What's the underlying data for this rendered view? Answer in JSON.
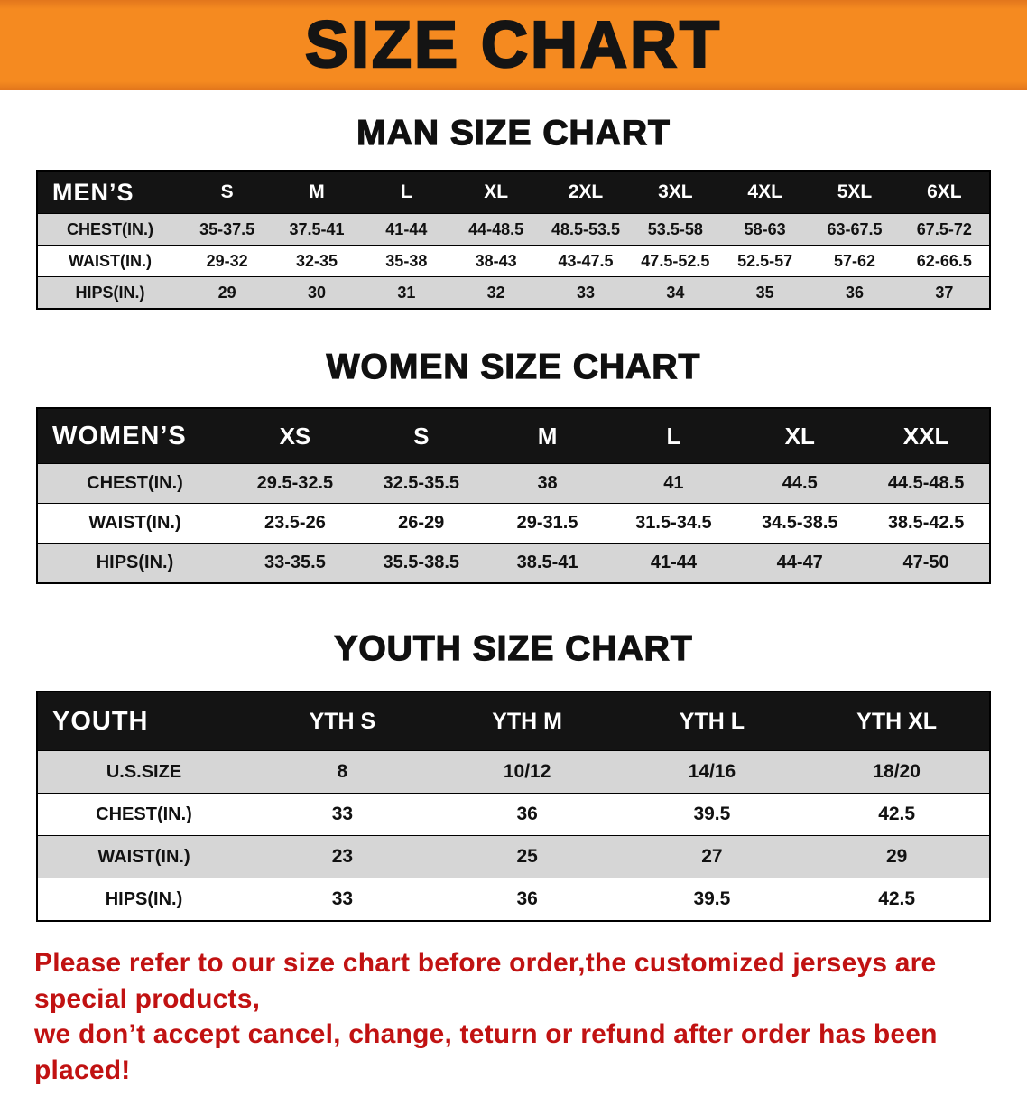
{
  "banner": {
    "title": "SIZE CHART",
    "background_color": "#f58a20",
    "title_color": "#141414"
  },
  "sections": [
    {
      "heading": "MAN SIZE CHART",
      "table": {
        "header": [
          "MEN’S",
          "S",
          "M",
          "L",
          "XL",
          "2XL",
          "3XL",
          "4XL",
          "5XL",
          "6XL"
        ],
        "rows": [
          [
            "CHEST(IN.)",
            "35-37.5",
            "37.5-41",
            "41-44",
            "44-48.5",
            "48.5-53.5",
            "53.5-58",
            "58-63",
            "63-67.5",
            "67.5-72"
          ],
          [
            "WAIST(IN.)",
            "29-32",
            "32-35",
            "35-38",
            "38-43",
            "43-47.5",
            "47.5-52.5",
            "52.5-57",
            "57-62",
            "62-66.5"
          ],
          [
            "HIPS(IN.)",
            "29",
            "30",
            "31",
            "32",
            "33",
            "34",
            "35",
            "36",
            "37"
          ]
        ]
      }
    },
    {
      "heading": "WOMEN SIZE CHART",
      "table": {
        "header": [
          "WOMEN’S",
          "XS",
          "S",
          "M",
          "L",
          "XL",
          "XXL"
        ],
        "rows": [
          [
            "CHEST(IN.)",
            "29.5-32.5",
            "32.5-35.5",
            "38",
            "41",
            "44.5",
            "44.5-48.5"
          ],
          [
            "WAIST(IN.)",
            "23.5-26",
            "26-29",
            "29-31.5",
            "31.5-34.5",
            "34.5-38.5",
            "38.5-42.5"
          ],
          [
            "HIPS(IN.)",
            "33-35.5",
            "35.5-38.5",
            "38.5-41",
            "41-44",
            "44-47",
            "47-50"
          ]
        ]
      }
    },
    {
      "heading": "YOUTH SIZE CHART",
      "table": {
        "header": [
          "YOUTH",
          "YTH S",
          "YTH M",
          "YTH L",
          "YTH XL"
        ],
        "rows": [
          [
            "U.S.SIZE",
            "8",
            "10/12",
            "14/16",
            "18/20"
          ],
          [
            "CHEST(IN.)",
            "33",
            "36",
            "39.5",
            "42.5"
          ],
          [
            "WAIST(IN.)",
            "23",
            "25",
            "27",
            "29"
          ],
          [
            "HIPS(IN.)",
            "33",
            "36",
            "39.5",
            "42.5"
          ]
        ]
      }
    }
  ],
  "table_colors": {
    "header_bg": "#141414",
    "header_text": "#ffffff",
    "shaded_row": "#d6d6d6",
    "plain_row": "#ffffff"
  },
  "disclaimer": {
    "color": "#c11212",
    "lines": [
      "Please refer to our size chart before order,the customized jerseys are special products,",
      "we don’t accept cancel, change, teturn or refund after order has been placed!"
    ]
  }
}
